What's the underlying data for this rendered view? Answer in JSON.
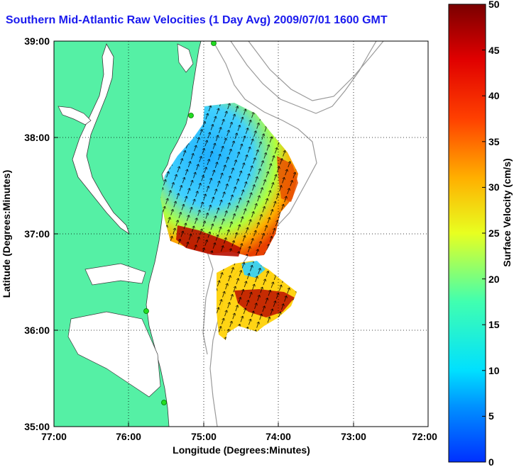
{
  "title": "Southern Mid-Atlantic Raw Velocities (1 Day Avg) 2009/07/01 1600 GMT",
  "map": {
    "xlabel": "Longitude (Degrees:Minutes)",
    "ylabel": "Latitude (Degrees:Minutes)",
    "lon_ticks": [
      "77:00",
      "76:00",
      "75:00",
      "74:00",
      "73:00",
      "72:00"
    ],
    "lat_ticks": [
      "39:00",
      "38:00",
      "37:00",
      "36:00",
      "35:00"
    ],
    "lon_range": [
      -77,
      -72
    ],
    "lat_range": [
      35,
      39
    ],
    "colors": {
      "land": "#55f0a5",
      "coast_line": "#3a3a3a",
      "bathymetry": "#9a9a9a",
      "grid": "#000000",
      "station": "#22dd22"
    }
  },
  "colorbar": {
    "label": "Surface Velocity (cm/s)",
    "ticks": [
      "50",
      "45",
      "40",
      "35",
      "30",
      "25",
      "20",
      "15",
      "10",
      "5",
      "0"
    ],
    "range": [
      0,
      50
    ],
    "colormap": "jet"
  }
}
